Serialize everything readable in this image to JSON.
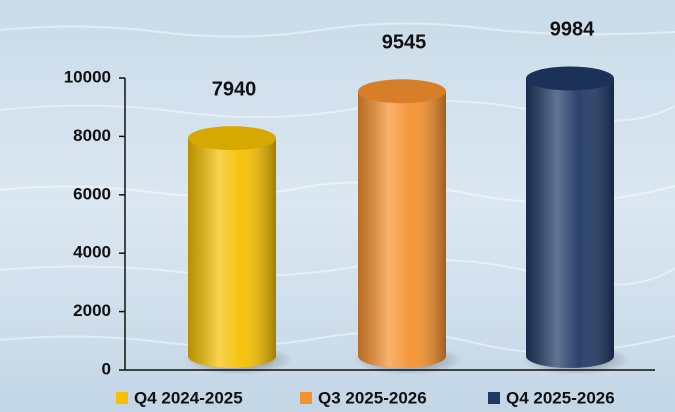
{
  "chart_data": {
    "type": "bar",
    "categories": [
      null
    ],
    "series": [
      {
        "name": "Q4 2024-2025",
        "color": "#f5c000",
        "values": [
          7940
        ]
      },
      {
        "name": "Q3 2025-2026",
        "color": "#f5912e",
        "values": [
          9545
        ]
      },
      {
        "name": "Q4 2025-2026",
        "color": "#1f3864",
        "values": [
          9984
        ]
      }
    ],
    "ylim": [
      0,
      10000
    ],
    "yticks": [
      0,
      2000,
      4000,
      6000,
      8000,
      10000
    ]
  }
}
